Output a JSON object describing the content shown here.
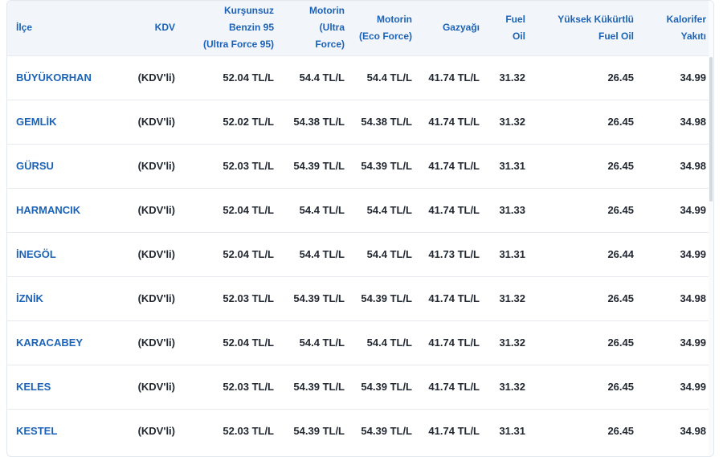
{
  "table": {
    "headers": [
      {
        "key": "district",
        "lines": [
          "İlçe"
        ]
      },
      {
        "key": "kdv",
        "lines": [
          "KDV"
        ]
      },
      {
        "key": "benzin",
        "lines": [
          "Kurşunsuz",
          "Benzin 95",
          "(Ultra Force 95)"
        ]
      },
      {
        "key": "motorin_ultra",
        "lines": [
          "Motorin",
          "(Ultra",
          "Force)"
        ]
      },
      {
        "key": "motorin_eco",
        "lines": [
          "Motorin",
          "(Eco Force)"
        ]
      },
      {
        "key": "gazyagi",
        "lines": [
          "Gazyağı"
        ]
      },
      {
        "key": "fuel_oil",
        "lines": [
          "Fuel",
          "Oil"
        ]
      },
      {
        "key": "yuksek_kukurt",
        "lines": [
          "Yüksek Kükürtlü",
          "Fuel Oil"
        ]
      },
      {
        "key": "kalorifer",
        "lines": [
          "Kalorifer",
          "Yakıtı"
        ]
      }
    ],
    "rows": [
      [
        "BÜYÜKORHAN",
        "(KDV'li)",
        "52.04 TL/L",
        "54.4 TL/L",
        "54.4 TL/L",
        "41.74 TL/L",
        "31.32",
        "26.45",
        "34.99"
      ],
      [
        "GEMLİK",
        "(KDV'li)",
        "52.02 TL/L",
        "54.38 TL/L",
        "54.38 TL/L",
        "41.74 TL/L",
        "31.32",
        "26.45",
        "34.98"
      ],
      [
        "GÜRSU",
        "(KDV'li)",
        "52.03 TL/L",
        "54.39 TL/L",
        "54.39 TL/L",
        "41.74 TL/L",
        "31.31",
        "26.45",
        "34.98"
      ],
      [
        "HARMANCIK",
        "(KDV'li)",
        "52.04 TL/L",
        "54.4 TL/L",
        "54.4 TL/L",
        "41.74 TL/L",
        "31.33",
        "26.45",
        "34.99"
      ],
      [
        "İNEGÖL",
        "(KDV'li)",
        "52.04 TL/L",
        "54.4 TL/L",
        "54.4 TL/L",
        "41.73 TL/L",
        "31.31",
        "26.44",
        "34.99"
      ],
      [
        "İZNİK",
        "(KDV'li)",
        "52.03 TL/L",
        "54.39 TL/L",
        "54.39 TL/L",
        "41.74 TL/L",
        "31.32",
        "26.45",
        "34.98"
      ],
      [
        "KARACABEY",
        "(KDV'li)",
        "52.04 TL/L",
        "54.4 TL/L",
        "54.4 TL/L",
        "41.74 TL/L",
        "31.32",
        "26.45",
        "34.99"
      ],
      [
        "KELES",
        "(KDV'li)",
        "52.03 TL/L",
        "54.39 TL/L",
        "54.39 TL/L",
        "41.74 TL/L",
        "31.32",
        "26.45",
        "34.99"
      ],
      [
        "KESTEL",
        "(KDV'li)",
        "52.03 TL/L",
        "54.39 TL/L",
        "54.39 TL/L",
        "41.74 TL/L",
        "31.31",
        "26.45",
        "34.98"
      ]
    ]
  },
  "colors": {
    "link": "#1b63b8",
    "header_bg": "#f2f5fa",
    "text": "#222831",
    "row_border": "#e6eaf0"
  }
}
